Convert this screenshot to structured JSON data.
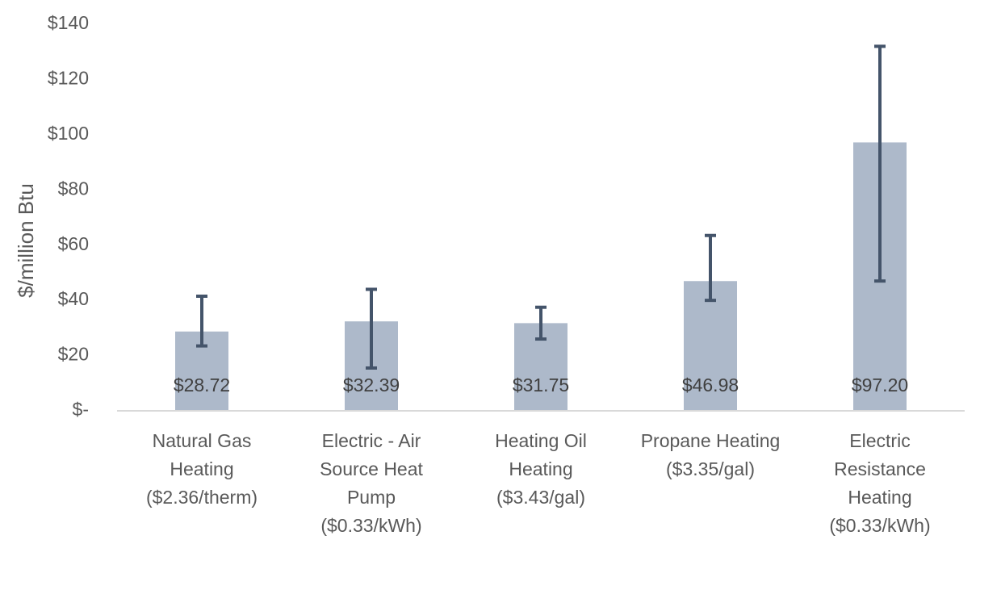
{
  "chart_data": {
    "type": "bar",
    "title": "",
    "xlabel": "",
    "ylabel": "$/million Btu",
    "ylim": [
      0,
      140
    ],
    "y_ticks": [
      {
        "value": 0,
        "label": "$-"
      },
      {
        "value": 20,
        "label": "$20"
      },
      {
        "value": 40,
        "label": "$40"
      },
      {
        "value": 60,
        "label": "$60"
      },
      {
        "value": 80,
        "label": "$80"
      },
      {
        "value": 100,
        "label": "$100"
      },
      {
        "value": 120,
        "label": "$120"
      },
      {
        "value": 140,
        "label": "$140"
      }
    ],
    "grid": false,
    "legend": "none",
    "categories": [
      [
        "Natural Gas",
        "Heating",
        "($2.36/therm)"
      ],
      [
        "Electric - Air",
        "Source Heat",
        "Pump",
        "($0.33/kWh)"
      ],
      [
        "Heating Oil",
        "Heating",
        "($3.43/gal)"
      ],
      [
        "Propane Heating",
        "($3.35/gal)"
      ],
      [
        "Electric",
        "Resistance",
        "Heating",
        "($0.33/kWh)"
      ]
    ],
    "values": [
      28.72,
      32.39,
      31.75,
      46.98,
      97.2
    ],
    "data_labels": [
      "$28.72",
      "$32.39",
      "$31.75",
      "$46.98",
      "$97.20"
    ],
    "error_bars": [
      {
        "low": 23.5,
        "high": 41.5
      },
      {
        "low": 15.5,
        "high": 44
      },
      {
        "low": 26,
        "high": 37.5
      },
      {
        "low": 40,
        "high": 63.5
      },
      {
        "low": 47,
        "high": 132
      }
    ],
    "colors": {
      "bar": "#adb9ca",
      "error_bar": "#44546a",
      "axis": "#d9d9d9",
      "text": "#595959",
      "data_label": "#404040"
    }
  }
}
